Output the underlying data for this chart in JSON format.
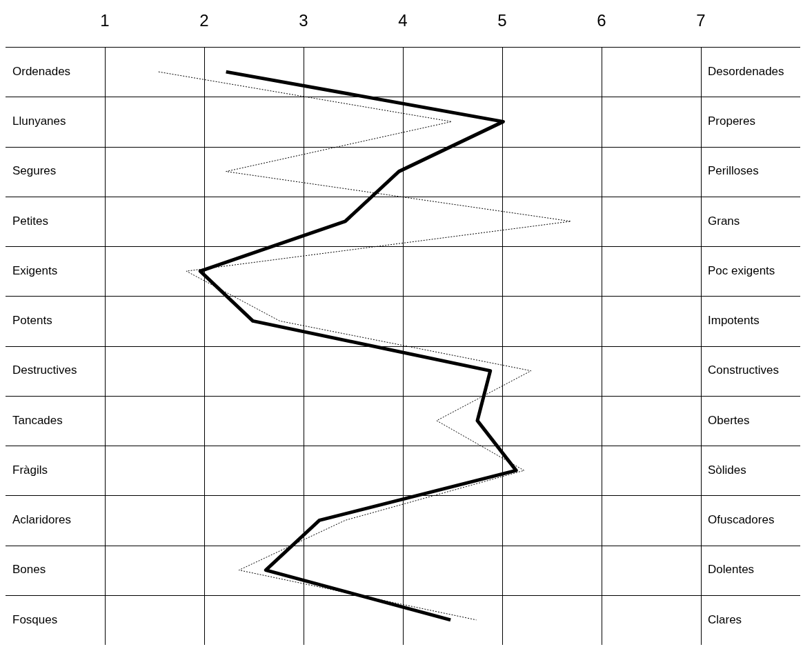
{
  "chart_data": {
    "type": "line",
    "orientation": "horizontal",
    "categories": [
      "Ordenades",
      "Llunyanes",
      "Segures",
      "Petites",
      "Exigents",
      "Potents",
      "Destructives",
      "Tancades",
      "Fràgils",
      "Aclaridores",
      "Bones",
      "Fosques"
    ],
    "y2_categories": [
      "Desordenades",
      "Properes",
      "Perilloses",
      "Grans",
      "Poc exigents",
      "Impotents",
      "Constructives",
      "Obertes",
      "Sòlides",
      "Ofuscadores",
      "Dolentes",
      "Clares"
    ],
    "series": [
      {
        "color": "#000000",
        "line_style": "solid",
        "values": [
          2.22,
          5.01,
          3.96,
          3.42,
          1.96,
          2.49,
          4.88,
          4.75,
          5.14,
          3.16,
          2.62,
          4.48
        ]
      },
      {
        "color": "#000000",
        "line_style": "dotted",
        "values": [
          1.54,
          4.49,
          2.22,
          5.69,
          1.82,
          2.76,
          5.29,
          4.34,
          5.22,
          3.42,
          2.35,
          4.74
        ]
      }
    ],
    "xlim": [
      0,
      8
    ],
    "xticks": [
      1,
      2,
      3,
      4,
      5,
      6,
      7
    ],
    "grid": true,
    "legend": false,
    "marker": "none"
  }
}
